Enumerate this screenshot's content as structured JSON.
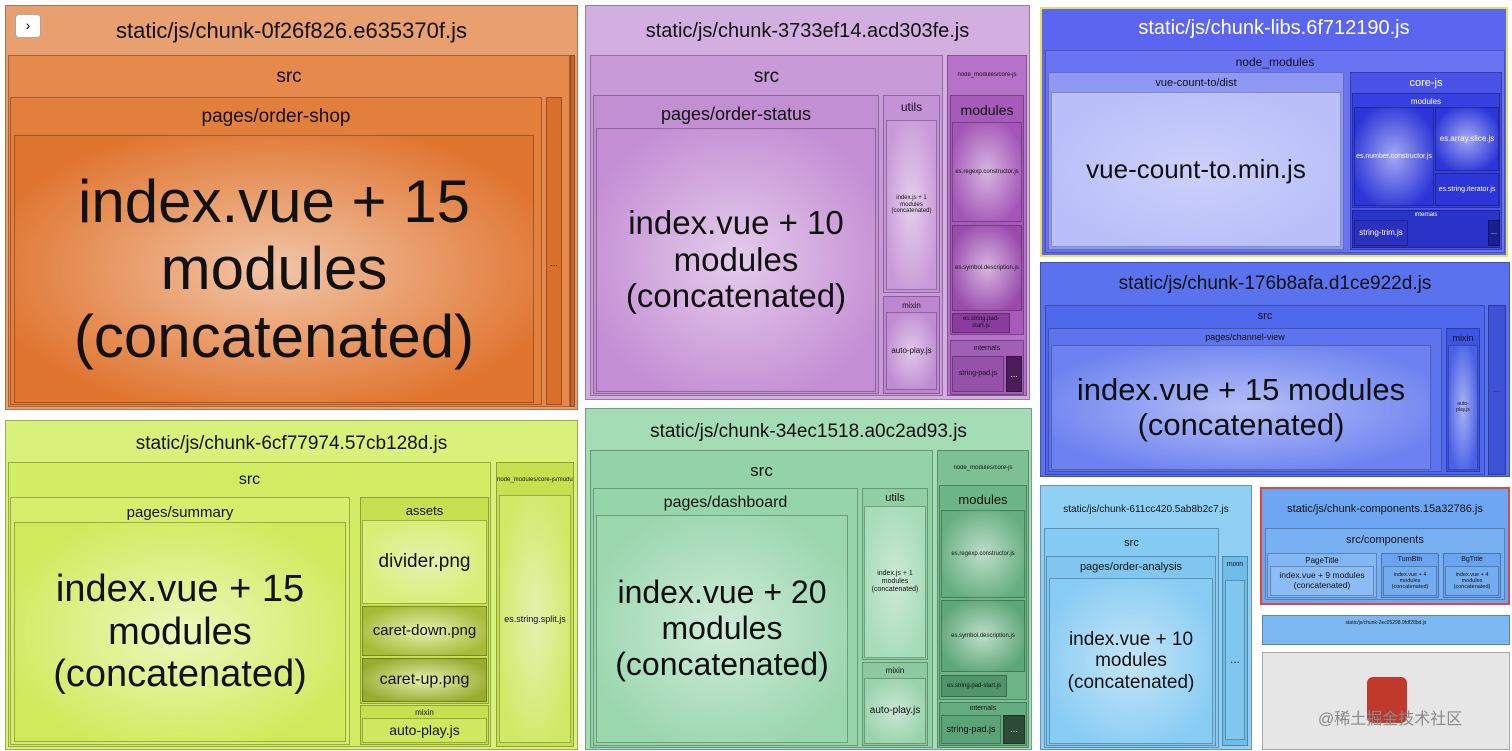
{
  "toggle": "›",
  "watermark": "@稀土掘金技术社区",
  "chunks": [
    {
      "title": "static/js/chunk-0f26f826.e635370f.js",
      "src": "src",
      "page": "pages/order-shop",
      "main": "index.vue + 15 modules (concatenated)",
      "more": "..."
    },
    {
      "title": "static/js/chunk-3733ef14.acd303fe.js",
      "src": "src",
      "page": "pages/order-status",
      "main": "index.vue + 10 modules (concatenated)",
      "utils": "utils",
      "utils_main": "index.js + 1 modules (concatenated)",
      "mixin": "mixin",
      "mixin_main": "auto-play.js",
      "core": "node_modules/core-js",
      "modules": "modules",
      "m0": "es.regexp.constructor.js",
      "m1": "es.symbol.description.js",
      "m2": "es.string.pad-start.js",
      "internals": "internals",
      "pad": "string-pad.js",
      "more": "..."
    },
    {
      "title": "static/js/chunk-libs.6f712190.js",
      "node": "node_modules",
      "dist": "vue-count-to/dist",
      "main": "vue-count-to.min.js",
      "core": "core-js",
      "modules": "modules",
      "m0": "es.number.constructor.js",
      "m1": "es.array.slice.js",
      "m2": "es.string.iterator.js",
      "internals": "internals",
      "trim": "string-trim.js",
      "more": "..."
    },
    {
      "title": "static/js/chunk-176b8afa.d1ce922d.js",
      "src": "src",
      "page": "pages/channel-view",
      "main": "index.vue + 15 modules (concatenated)",
      "mixin": "mixin",
      "mixin_main": "auto-play.js",
      "more": "..."
    },
    {
      "title": "static/js/chunk-6cf77974.57cb128d.js",
      "src": "src",
      "page": "pages/summary",
      "main": "index.vue + 15 modules (concatenated)",
      "assets": "assets",
      "a0": "divider.png",
      "a1": "caret-down.png",
      "a2": "caret-up.png",
      "mixin": "mixin",
      "mixin_main": "auto-play.js",
      "core": "node_modules/core-js/modules",
      "m0": "es.string.split.js"
    },
    {
      "title": "static/js/chunk-34ec1518.a0c2ad93.js",
      "src": "src",
      "page": "pages/dashboard",
      "main": "index.vue + 20 modules (concatenated)",
      "utils": "utils",
      "utils_main": "index.js + 1 modules (concatenated)",
      "mixin": "mixin",
      "mixin_main": "auto-play.js",
      "core": "node_modules/core-js",
      "modules": "modules",
      "m0": "es.regexp.constructor.js",
      "m1": "es.symbol.description.js",
      "m2": "es.string.pad-start.js",
      "internals": "internals",
      "pad": "string-pad.js",
      "more": "..."
    },
    {
      "title": "static/js/chunk-611cc420.5ab8b2c7.js",
      "src": "src",
      "page": "pages/order-analysis",
      "main": "index.vue + 10 modules (concatenated)",
      "mixin": "mixin",
      "more": "..."
    },
    {
      "title": "static/js/chunk-components.15a32786.js",
      "src": "src/components",
      "p0": "PageTitle",
      "p0_main": "index.vue + 9 modules (concatenated)",
      "p1": "TurnBtn",
      "p1_main": "index.vue + 4 modules (concatenated)",
      "p2": "BgTitle",
      "p2_main": "index.vue + 4 modules (concatenated)"
    },
    {
      "title": "static/js/chunk-2ec05298.9fdf28bd.js"
    }
  ]
}
